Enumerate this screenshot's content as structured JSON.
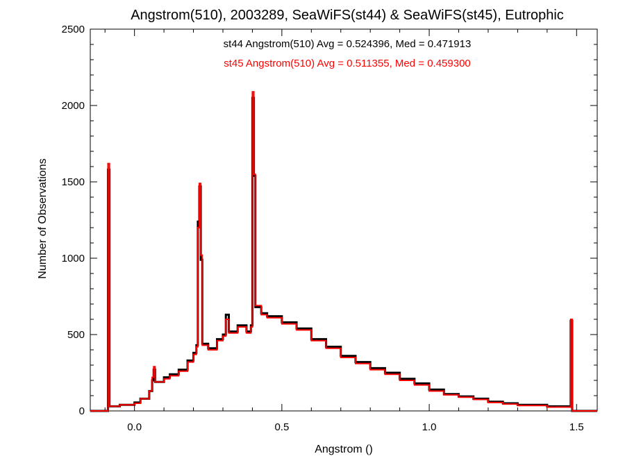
{
  "chart_data": {
    "type": "line",
    "title": "Angstrom(510), 2003289, SeaWiFS(st44) & SeaWiFS(st45), Eutrophic",
    "xlabel": "Angstrom ()",
    "ylabel": "Number of Observations",
    "xlim": [
      -0.15,
      1.57
    ],
    "ylim": [
      0,
      2500
    ],
    "xticks": [
      0.0,
      0.5,
      1.0,
      1.5
    ],
    "xtick_labels": [
      "0.0",
      "0.5",
      "1.0",
      "1.5"
    ],
    "yticks": [
      0,
      500,
      1000,
      1500,
      2000,
      2500
    ],
    "ytick_labels": [
      "0",
      "500",
      "1000",
      "1500",
      "2000",
      "2500"
    ],
    "grid": false,
    "annotations": [
      "st44 Angstrom(510) Avg = 0.524396, Med = 0.471913",
      "st45 Angstrom(510) Avg = 0.511355, Med = 0.459300"
    ],
    "series": [
      {
        "name": "st44",
        "color": "#000000",
        "style": "histogram-step",
        "points": [
          [
            -0.15,
            0
          ],
          [
            -0.09,
            0
          ],
          [
            -0.09,
            1580
          ],
          [
            -0.085,
            1580
          ],
          [
            -0.085,
            30
          ],
          [
            -0.05,
            40
          ],
          [
            0.0,
            55
          ],
          [
            0.02,
            80
          ],
          [
            0.05,
            130
          ],
          [
            0.06,
            200
          ],
          [
            0.065,
            270
          ],
          [
            0.07,
            190
          ],
          [
            0.1,
            220
          ],
          [
            0.12,
            240
          ],
          [
            0.15,
            270
          ],
          [
            0.18,
            330
          ],
          [
            0.2,
            380
          ],
          [
            0.21,
            430
          ],
          [
            0.215,
            1240
          ],
          [
            0.22,
            1470
          ],
          [
            0.225,
            990
          ],
          [
            0.23,
            440
          ],
          [
            0.25,
            410
          ],
          [
            0.28,
            470
          ],
          [
            0.3,
            500
          ],
          [
            0.31,
            630
          ],
          [
            0.32,
            520
          ],
          [
            0.35,
            560
          ],
          [
            0.38,
            520
          ],
          [
            0.395,
            560
          ],
          [
            0.4,
            2050
          ],
          [
            0.405,
            1540
          ],
          [
            0.41,
            680
          ],
          [
            0.43,
            640
          ],
          [
            0.45,
            620
          ],
          [
            0.5,
            580
          ],
          [
            0.55,
            540
          ],
          [
            0.6,
            470
          ],
          [
            0.65,
            420
          ],
          [
            0.7,
            360
          ],
          [
            0.75,
            320
          ],
          [
            0.8,
            280
          ],
          [
            0.85,
            250
          ],
          [
            0.9,
            210
          ],
          [
            0.95,
            180
          ],
          [
            1.0,
            140
          ],
          [
            1.05,
            110
          ],
          [
            1.1,
            95
          ],
          [
            1.15,
            80
          ],
          [
            1.2,
            60
          ],
          [
            1.25,
            50
          ],
          [
            1.3,
            40
          ],
          [
            1.35,
            40
          ],
          [
            1.4,
            30
          ],
          [
            1.45,
            30
          ],
          [
            1.48,
            25
          ],
          [
            1.48,
            590
          ],
          [
            1.485,
            590
          ],
          [
            1.485,
            0
          ],
          [
            1.57,
            0
          ]
        ]
      },
      {
        "name": "st45",
        "color": "#ff0000",
        "style": "histogram-step",
        "points": [
          [
            -0.15,
            0
          ],
          [
            -0.09,
            0
          ],
          [
            -0.09,
            1620
          ],
          [
            -0.085,
            1620
          ],
          [
            -0.085,
            30
          ],
          [
            -0.05,
            40
          ],
          [
            0.0,
            50
          ],
          [
            0.02,
            80
          ],
          [
            0.05,
            130
          ],
          [
            0.06,
            220
          ],
          [
            0.065,
            290
          ],
          [
            0.07,
            190
          ],
          [
            0.1,
            210
          ],
          [
            0.12,
            230
          ],
          [
            0.15,
            260
          ],
          [
            0.18,
            320
          ],
          [
            0.2,
            370
          ],
          [
            0.21,
            420
          ],
          [
            0.215,
            1200
          ],
          [
            0.22,
            1490
          ],
          [
            0.225,
            1020
          ],
          [
            0.23,
            430
          ],
          [
            0.25,
            400
          ],
          [
            0.28,
            460
          ],
          [
            0.3,
            490
          ],
          [
            0.31,
            600
          ],
          [
            0.32,
            510
          ],
          [
            0.35,
            550
          ],
          [
            0.38,
            510
          ],
          [
            0.395,
            550
          ],
          [
            0.4,
            2090
          ],
          [
            0.405,
            1550
          ],
          [
            0.41,
            690
          ],
          [
            0.43,
            630
          ],
          [
            0.45,
            610
          ],
          [
            0.5,
            570
          ],
          [
            0.55,
            530
          ],
          [
            0.6,
            460
          ],
          [
            0.65,
            410
          ],
          [
            0.7,
            350
          ],
          [
            0.75,
            310
          ],
          [
            0.8,
            270
          ],
          [
            0.85,
            240
          ],
          [
            0.9,
            200
          ],
          [
            0.95,
            170
          ],
          [
            1.0,
            130
          ],
          [
            1.05,
            105
          ],
          [
            1.1,
            90
          ],
          [
            1.15,
            75
          ],
          [
            1.2,
            55
          ],
          [
            1.25,
            45
          ],
          [
            1.3,
            35
          ],
          [
            1.35,
            35
          ],
          [
            1.4,
            25
          ],
          [
            1.45,
            25
          ],
          [
            1.48,
            20
          ],
          [
            1.48,
            600
          ],
          [
            1.485,
            600
          ],
          [
            1.485,
            0
          ],
          [
            1.57,
            0
          ]
        ]
      }
    ]
  }
}
